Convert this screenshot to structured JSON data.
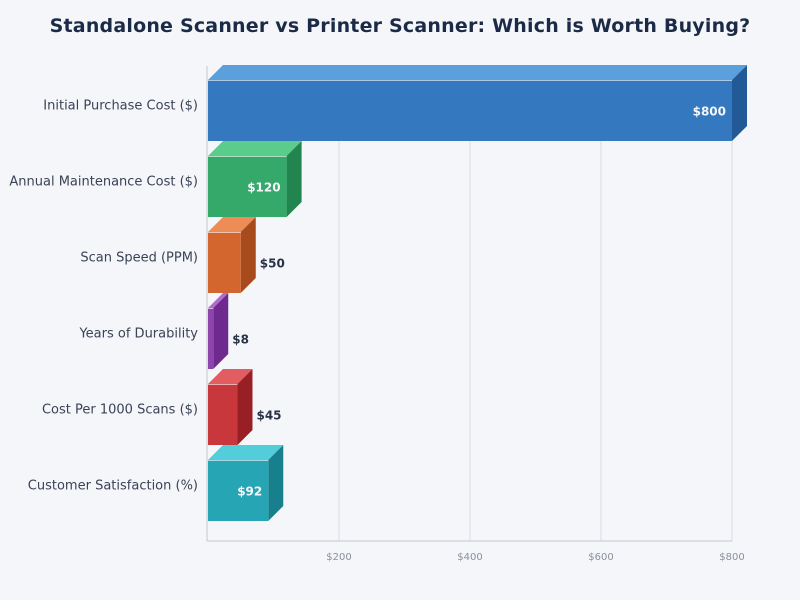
{
  "chart_data": {
    "type": "bar",
    "orientation": "horizontal",
    "style": "3d",
    "title": "Standalone Scanner vs Printer Scanner: Which is Worth Buying?",
    "xlabel": "",
    "ylabel": "",
    "xlim": [
      0,
      800
    ],
    "grid": true,
    "categories": [
      "Initial Purchase Cost ($)",
      "Annual Maintenance Cost ($)",
      "Scan Speed (PPM)",
      "Years of Durability",
      "Cost Per 1000 Scans ($)",
      "Customer Satisfaction (%)"
    ],
    "values": [
      800,
      120,
      50,
      8,
      45,
      92
    ],
    "value_labels": [
      "$800",
      "$120",
      "$50",
      "$8",
      "$45",
      "$92"
    ],
    "x_ticks": [
      200,
      400,
      600,
      800
    ],
    "x_tick_labels": [
      "$200",
      "$400",
      "$600",
      "$800"
    ],
    "colors": [
      {
        "front": "#3479c0",
        "top": "#5ba0dd",
        "side": "#215a96"
      },
      {
        "front": "#35a96a",
        "top": "#5acd8c",
        "side": "#22844e"
      },
      {
        "front": "#d3652f",
        "top": "#ee8c57",
        "side": "#a74a1c"
      },
      {
        "front": "#8e44ad",
        "top": "#b26cd0",
        "side": "#6e2a8e"
      },
      {
        "front": "#c8373c",
        "top": "#e25d62",
        "side": "#981f24"
      },
      {
        "front": "#26a6b4",
        "top": "#52cdd9",
        "side": "#18808c"
      }
    ]
  }
}
